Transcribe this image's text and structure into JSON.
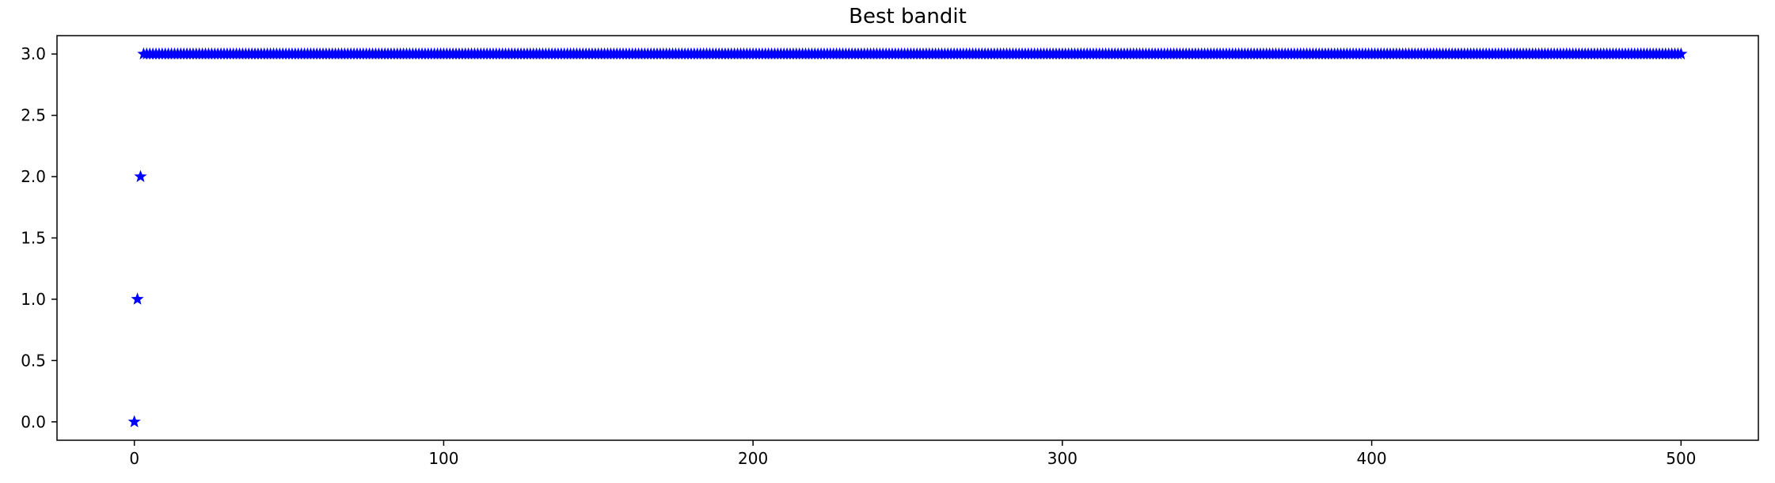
{
  "chart_data": {
    "type": "scatter",
    "title": "Best bandit",
    "xlabel": "",
    "ylabel": "",
    "xlim": [
      -25,
      525
    ],
    "ylim": [
      -0.15,
      3.15
    ],
    "x_ticks": [
      0,
      100,
      200,
      300,
      400,
      500
    ],
    "x_tick_labels": [
      "0",
      "100",
      "200",
      "300",
      "400",
      "500"
    ],
    "y_ticks": [
      0.0,
      0.5,
      1.0,
      1.5,
      2.0,
      2.5,
      3.0
    ],
    "y_tick_labels": [
      "0.0",
      "0.5",
      "1.0",
      "1.5",
      "2.0",
      "2.5",
      "3.0"
    ],
    "grid": false,
    "marker": "star",
    "color": "#0000ff",
    "series": [
      {
        "initial_points": [
          {
            "x": 0,
            "y": 0
          },
          {
            "x": 1,
            "y": 1
          },
          {
            "x": 2,
            "y": 2
          }
        ],
        "constant_run": {
          "x_start": 3,
          "x_end": 500,
          "y": 3
        }
      }
    ]
  }
}
